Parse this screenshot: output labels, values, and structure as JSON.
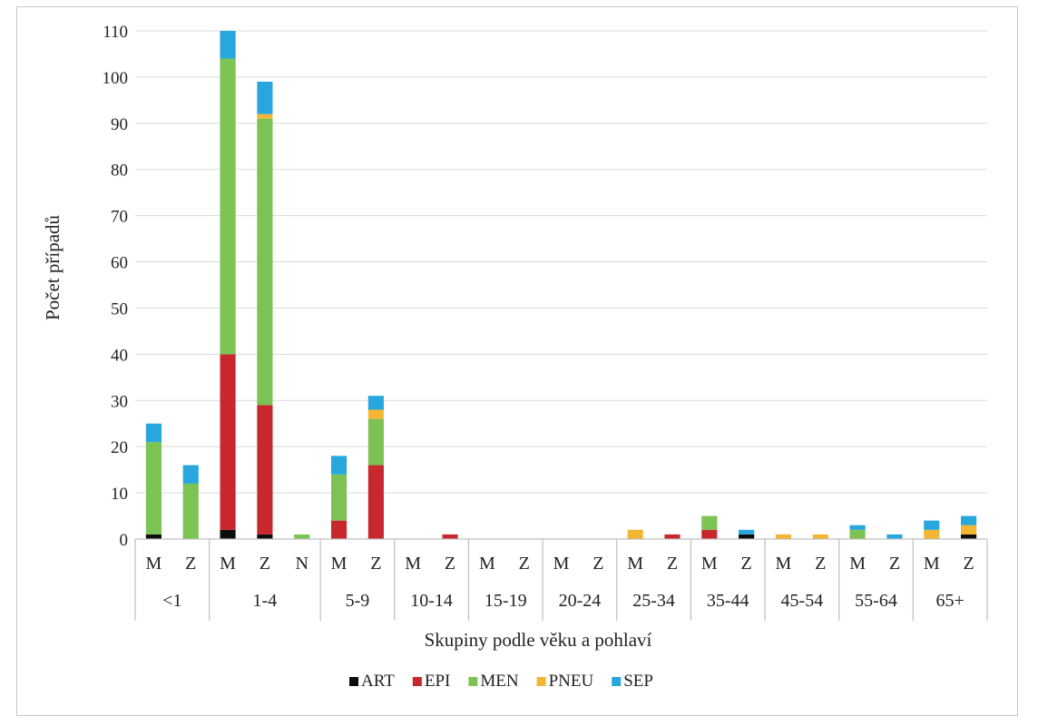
{
  "chart_data": {
    "type": "bar",
    "stacked": true,
    "title": "",
    "ylabel": "Počet případů",
    "xlabel": "Skupiny podle věku a pohlaví",
    "ylim": [
      0,
      110
    ],
    "yticks": [
      0,
      10,
      20,
      30,
      40,
      50,
      60,
      70,
      80,
      90,
      100,
      110
    ],
    "grid": true,
    "legend_position": "bottom",
    "colors": {
      "ART": "#0d0d0d",
      "EPI": "#c8272d",
      "MEN": "#7cc354",
      "PNEU": "#f2b632",
      "SEP": "#27a7dd"
    },
    "groups": [
      {
        "label": "<1",
        "categories": [
          "M",
          "Z"
        ]
      },
      {
        "label": "1-4",
        "categories": [
          "M",
          "Z",
          "N"
        ]
      },
      {
        "label": "5-9",
        "categories": [
          "M",
          "Z"
        ]
      },
      {
        "label": "10-14",
        "categories": [
          "M",
          "Z"
        ]
      },
      {
        "label": "15-19",
        "categories": [
          "M",
          "Z"
        ]
      },
      {
        "label": "20-24",
        "categories": [
          "M",
          "Z"
        ]
      },
      {
        "label": "25-34",
        "categories": [
          "M",
          "Z"
        ]
      },
      {
        "label": "35-44",
        "categories": [
          "M",
          "Z"
        ]
      },
      {
        "label": "45-54",
        "categories": [
          "M",
          "Z"
        ]
      },
      {
        "label": "55-64",
        "categories": [
          "M",
          "Z"
        ]
      },
      {
        "label": "65+",
        "categories": [
          "M",
          "Z"
        ]
      }
    ],
    "series": [
      {
        "name": "ART",
        "values": [
          1,
          0,
          2,
          1,
          0,
          0,
          0,
          0,
          0,
          0,
          0,
          0,
          0,
          0,
          0,
          0,
          1,
          0,
          0,
          0,
          0,
          0,
          1
        ]
      },
      {
        "name": "EPI",
        "values": [
          0,
          0,
          38,
          28,
          0,
          4,
          16,
          0,
          1,
          0,
          0,
          0,
          0,
          0,
          1,
          2,
          0,
          0,
          0,
          0,
          0,
          0,
          0
        ]
      },
      {
        "name": "MEN",
        "values": [
          20,
          12,
          64,
          62,
          1,
          10,
          10,
          0,
          0,
          0,
          0,
          0,
          0,
          0,
          0,
          3,
          0,
          0,
          0,
          2,
          0,
          0,
          0
        ]
      },
      {
        "name": "PNEU",
        "values": [
          0,
          0,
          0,
          1,
          0,
          0,
          2,
          0,
          0,
          0,
          0,
          0,
          0,
          2,
          0,
          0,
          0,
          1,
          1,
          0,
          0,
          2,
          2
        ]
      },
      {
        "name": "SEP",
        "values": [
          4,
          4,
          6,
          7,
          0,
          4,
          3,
          0,
          0,
          0,
          0,
          0,
          0,
          0,
          0,
          0,
          1,
          0,
          0,
          1,
          1,
          2,
          2
        ]
      }
    ]
  }
}
